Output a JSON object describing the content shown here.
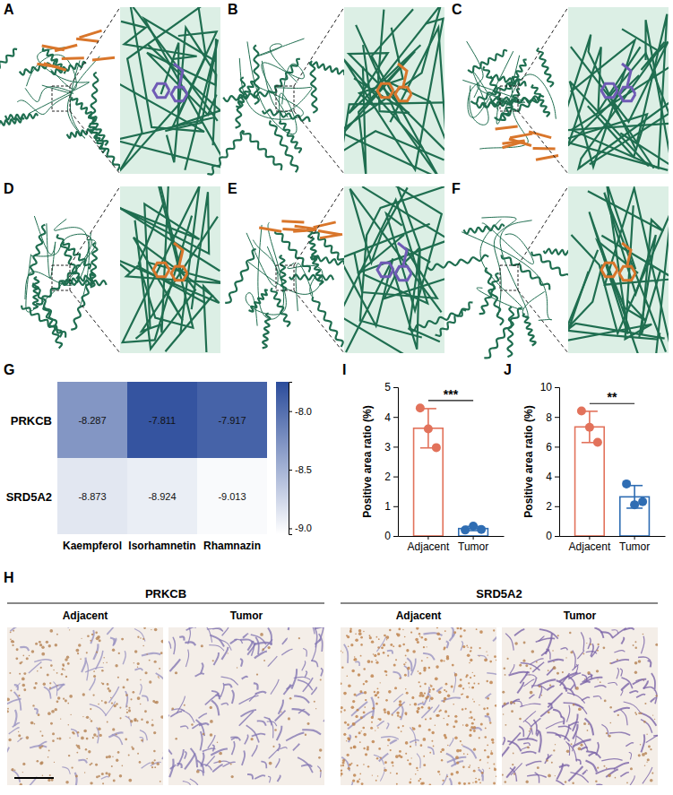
{
  "structures": {
    "panels": [
      "A",
      "B",
      "C",
      "D",
      "E",
      "F"
    ]
  },
  "chart_data": [
    {
      "panel": "G",
      "type": "heatmap",
      "x": [
        "Kaempferol",
        "Isorhamnetin",
        "Rhamnazin"
      ],
      "y": [
        "PRKCB",
        "SRD5A2"
      ],
      "values": [
        [
          -8.287,
          -7.811,
          -7.917
        ],
        [
          -8.873,
          -8.924,
          -9.013
        ]
      ],
      "color": "#2b4c9b",
      "color_range": [
        -9.05,
        -7.75
      ],
      "color_ticks": [
        {
          "value": -8,
          "label": "-8.0"
        },
        {
          "value": -8.5,
          "label": "-8.5"
        },
        {
          "value": -9,
          "label": "-9.0"
        }
      ],
      "data_labels": true
    },
    {
      "panel": "I",
      "type": "bar",
      "categories": [
        "Adjacent",
        "Tumor"
      ],
      "values": [
        3.62,
        0.25
      ],
      "errors": [
        0.66,
        0.07
      ],
      "points": [
        [
          4.3,
          3.6,
          2.97
        ],
        [
          0.2,
          0.33,
          0.22
        ]
      ],
      "colors": [
        "#e2725b",
        "#2f6db3"
      ],
      "y_label": "Positive area ratio (%)",
      "ylim": [
        0,
        5
      ],
      "yticks": [
        0,
        1,
        2,
        3,
        4,
        5
      ],
      "annotation": "***"
    },
    {
      "panel": "J",
      "type": "bar",
      "categories": [
        "Adjacent",
        "Tumor"
      ],
      "values": [
        7.33,
        2.63
      ],
      "errors": [
        1.05,
        0.76
      ],
      "points": [
        [
          8.4,
          7.3,
          6.3
        ],
        [
          3.5,
          2.1,
          2.3
        ]
      ],
      "colors": [
        "#e2725b",
        "#2f6db3"
      ],
      "y_label": "Positive area ratio (%)",
      "ylim": [
        0,
        10
      ],
      "yticks": [
        0,
        2,
        4,
        6,
        8,
        10
      ],
      "annotation": "**"
    }
  ],
  "ihc": {
    "panel": "H",
    "groups": [
      {
        "title": "PRKCB",
        "labels": [
          "Adjacent",
          "Tumor"
        ]
      },
      {
        "title": "SRD5A2",
        "labels": [
          "Adjacent",
          "Tumor"
        ]
      }
    ]
  }
}
